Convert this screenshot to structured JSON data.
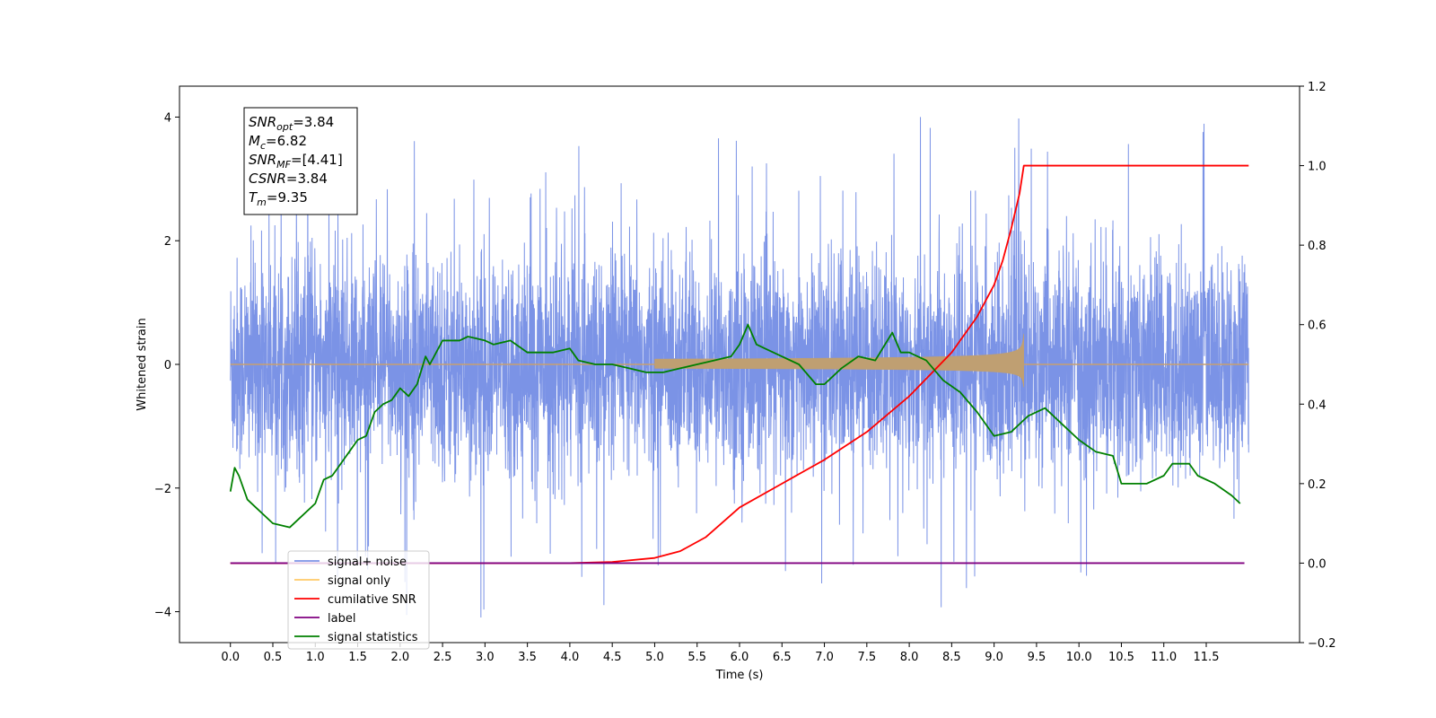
{
  "chart_data": {
    "type": "line",
    "title": "",
    "xlabel": "Time (s)",
    "ylabel": "Whitened strain",
    "y2label": "",
    "xlim": [
      -0.6,
      12.6
    ],
    "ylim": [
      -4.5,
      4.5
    ],
    "y2lim": [
      -0.2,
      1.2
    ],
    "xticks": [
      0.0,
      0.5,
      1.0,
      1.5,
      2.0,
      2.5,
      3.0,
      3.5,
      4.0,
      4.5,
      5.0,
      5.5,
      6.0,
      6.5,
      7.0,
      7.5,
      8.0,
      8.5,
      9.0,
      9.5,
      10.0,
      10.5,
      11.0,
      11.5
    ],
    "xtick_labels": [
      "0.0",
      "0.5",
      "1.0",
      "1.5",
      "2.0",
      "2.5",
      "3.0",
      "3.5",
      "4.0",
      "4.5",
      "5.0",
      "5.5",
      "6.0",
      "6.5",
      "7.0",
      "7.5",
      "8.0",
      "8.5",
      "9.0",
      "9.5",
      "10.0",
      "10.5",
      "11.0",
      "11.5"
    ],
    "yticks": [
      -4,
      -2,
      0,
      2,
      4
    ],
    "ytick_labels": [
      "−4",
      "−2",
      "0",
      "2",
      "4"
    ],
    "y2ticks": [
      -0.2,
      0.0,
      0.2,
      0.4,
      0.6,
      0.8,
      1.0,
      1.2
    ],
    "y2tick_labels": [
      "−0.2",
      "0.0",
      "0.2",
      "0.4",
      "0.6",
      "0.8",
      "1.0",
      "1.2"
    ],
    "grid": false,
    "legend_position": "lower-left",
    "annotation_lines": [
      {
        "symbol": "SNR",
        "sub": "opt",
        "value": "=3.84"
      },
      {
        "symbol": "M",
        "sub": "c",
        "value": "=6.82"
      },
      {
        "symbol": "SNR",
        "sub": "MF",
        "value": "=[4.41]"
      },
      {
        "symbol": "CSNR",
        "sub": "",
        "value": "=3.84"
      },
      {
        "symbol": "T",
        "sub": "m",
        "value": "=9.35"
      }
    ],
    "series": [
      {
        "name": "signal+ noise",
        "axis": "left",
        "color": "#7b93e6",
        "kind": "noise",
        "x_range": [
          0.0,
          12.0
        ],
        "envelope_sigma": 1.0,
        "typical_max": 2.5,
        "max_spike": 4.1
      },
      {
        "name": "signal only",
        "axis": "left",
        "color": "#ffc966",
        "kind": "chirp",
        "x_range": [
          0.0,
          9.35
        ],
        "end_amplitude": 0.55,
        "merger_time": 9.35
      },
      {
        "name": "cumilative SNR",
        "axis": "right",
        "color": "#ff0000",
        "x": [
          0.0,
          4.0,
          4.5,
          5.0,
          5.3,
          5.6,
          6.0,
          6.5,
          7.0,
          7.5,
          8.0,
          8.5,
          8.8,
          9.0,
          9.1,
          9.2,
          9.3,
          9.35,
          12.0
        ],
        "values": [
          0.0,
          0.0,
          0.003,
          0.013,
          0.03,
          0.065,
          0.14,
          0.2,
          0.26,
          0.33,
          0.42,
          0.53,
          0.62,
          0.7,
          0.76,
          0.84,
          0.93,
          1.0,
          1.0
        ]
      },
      {
        "name": "label",
        "axis": "right",
        "color": "#800080",
        "x": [
          0.0,
          11.95
        ],
        "values": [
          0.0,
          0.0
        ]
      },
      {
        "name": "signal statistics",
        "axis": "right",
        "color": "#008000",
        "x": [
          0.0,
          0.05,
          0.1,
          0.2,
          0.3,
          0.5,
          0.7,
          0.8,
          1.0,
          1.1,
          1.2,
          1.4,
          1.5,
          1.6,
          1.7,
          1.8,
          1.9,
          2.0,
          2.1,
          2.2,
          2.3,
          2.35,
          2.4,
          2.5,
          2.7,
          2.8,
          3.0,
          3.1,
          3.3,
          3.5,
          3.8,
          4.0,
          4.1,
          4.3,
          4.5,
          4.7,
          4.9,
          5.1,
          5.3,
          5.5,
          5.7,
          5.9,
          6.0,
          6.1,
          6.2,
          6.3,
          6.5,
          6.7,
          6.9,
          7.0,
          7.1,
          7.2,
          7.4,
          7.6,
          7.8,
          7.9,
          8.0,
          8.2,
          8.4,
          8.6,
          8.8,
          9.0,
          9.2,
          9.4,
          9.6,
          9.8,
          10.0,
          10.2,
          10.4,
          10.5,
          10.6,
          10.8,
          11.0,
          11.1,
          11.3,
          11.4,
          11.6,
          11.8,
          11.9
        ],
        "values": [
          0.18,
          0.24,
          0.22,
          0.16,
          0.14,
          0.1,
          0.09,
          0.11,
          0.15,
          0.21,
          0.22,
          0.28,
          0.31,
          0.32,
          0.38,
          0.4,
          0.41,
          0.44,
          0.42,
          0.45,
          0.52,
          0.5,
          0.52,
          0.56,
          0.56,
          0.57,
          0.56,
          0.55,
          0.56,
          0.53,
          0.53,
          0.54,
          0.51,
          0.5,
          0.5,
          0.49,
          0.48,
          0.48,
          0.49,
          0.5,
          0.51,
          0.52,
          0.55,
          0.6,
          0.55,
          0.54,
          0.52,
          0.5,
          0.45,
          0.45,
          0.47,
          0.49,
          0.52,
          0.51,
          0.58,
          0.53,
          0.53,
          0.51,
          0.46,
          0.43,
          0.38,
          0.32,
          0.33,
          0.37,
          0.39,
          0.35,
          0.31,
          0.28,
          0.27,
          0.2,
          0.2,
          0.2,
          0.22,
          0.25,
          0.25,
          0.22,
          0.2,
          0.17,
          0.15
        ]
      }
    ]
  }
}
